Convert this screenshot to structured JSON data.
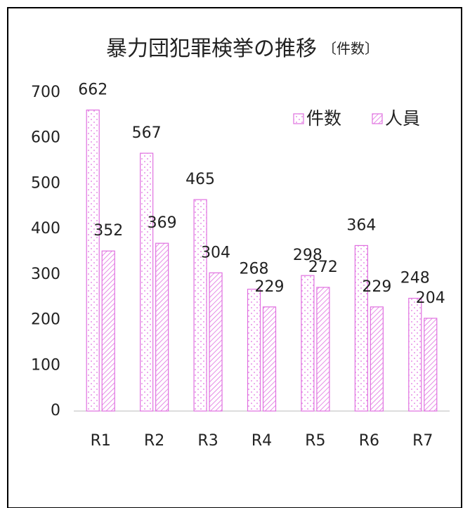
{
  "chart_data": {
    "type": "bar",
    "title": "暴力団犯罪検挙の推移",
    "subtitle": "〔件数〕",
    "categories": [
      "R1",
      "R2",
      "R3",
      "R4",
      "R5",
      "R6",
      "R7"
    ],
    "series": [
      {
        "name": "件数",
        "color": "#e070e0",
        "values": [
          662,
          567,
          465,
          268,
          298,
          364,
          248
        ]
      },
      {
        "name": "人員",
        "color": "#e070e0",
        "values": [
          352,
          369,
          304,
          229,
          272,
          229,
          204
        ]
      }
    ],
    "ylim": [
      0,
      700
    ],
    "yticks": [
      0,
      100,
      200,
      300,
      400,
      500,
      600,
      700
    ],
    "grid": false,
    "legend": "top-right"
  }
}
